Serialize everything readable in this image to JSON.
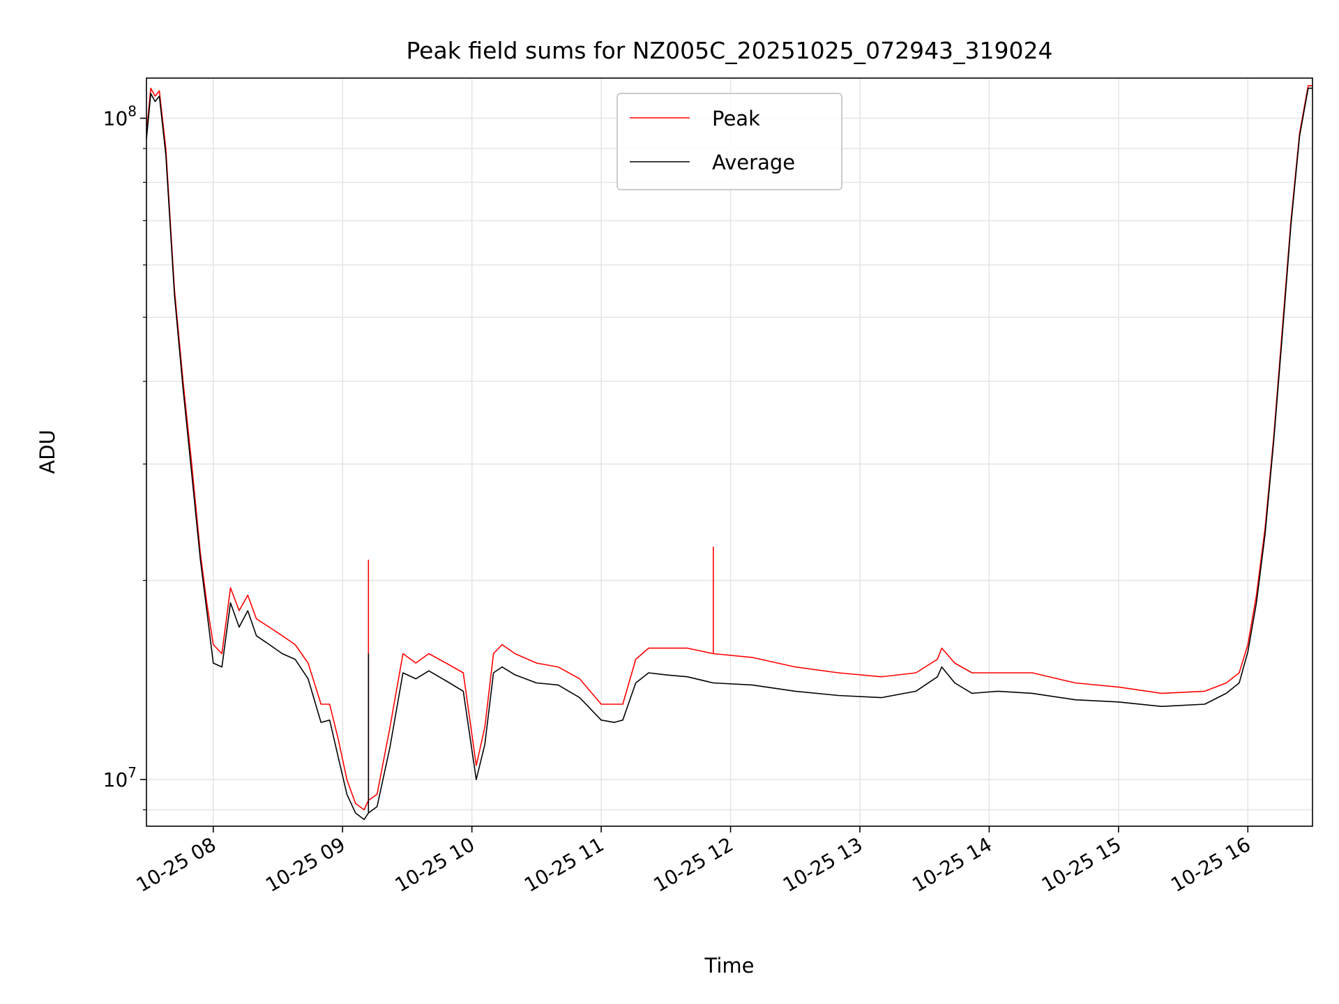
{
  "colors": {
    "peak": "#ff0000",
    "average": "#000000",
    "grid": "#e5e5e5",
    "axis": "#000000"
  },
  "chart_data": {
    "type": "line",
    "title": "Peak field sums for NZ005C_20251025_072943_319024",
    "xlabel": "Time",
    "ylabel": "ADU",
    "y_scale": "log",
    "xlim": [
      "10-25 07:29",
      "10-25 16:30"
    ],
    "ylim": [
      8500000,
      115000000
    ],
    "x_ticks": [
      "10-25 08",
      "10-25 09",
      "10-25 10",
      "10-25 11",
      "10-25 12",
      "10-25 13",
      "10-25 14",
      "10-25 15",
      "10-25 16"
    ],
    "x_tick_values": [
      "10-25 08:00",
      "10-25 09:00",
      "10-25 10:00",
      "10-25 11:00",
      "10-25 12:00",
      "10-25 13:00",
      "10-25 14:00",
      "10-25 15:00",
      "10-25 16:00"
    ],
    "y_ticks": [
      {
        "value": 10000000,
        "base": "10",
        "exp": "7"
      },
      {
        "value": 100000000,
        "base": "10",
        "exp": "8"
      }
    ],
    "grid": true,
    "legend_position": "top-center",
    "series": [
      {
        "name": "Peak",
        "color": "#ff0000",
        "x": [
          "10-25 07:29",
          "10-25 07:31",
          "10-25 07:33",
          "10-25 07:35",
          "10-25 07:38",
          "10-25 07:42",
          "10-25 07:46",
          "10-25 07:50",
          "10-25 07:54",
          "10-25 07:57",
          "10-25 08:00",
          "10-25 08:04",
          "10-25 08:08",
          "10-25 08:12",
          "10-25 08:16",
          "10-25 08:20",
          "10-25 08:26",
          "10-25 08:32",
          "10-25 08:38",
          "10-25 08:44",
          "10-25 08:50",
          "10-25 08:54",
          "10-25 08:58",
          "10-25 09:02",
          "10-25 09:06",
          "10-25 09:10",
          "10-25 09:12",
          "10-25 09:16",
          "10-25 09:22",
          "10-25 09:28",
          "10-25 09:34",
          "10-25 09:40",
          "10-25 09:48",
          "10-25 09:56",
          "10-25 10:02",
          "10-25 10:06",
          "10-25 10:10",
          "10-25 10:14",
          "10-25 10:20",
          "10-25 10:30",
          "10-25 10:40",
          "10-25 10:50",
          "10-25 11:00",
          "10-25 11:06",
          "10-25 11:10",
          "10-25 11:16",
          "10-25 11:22",
          "10-25 11:30",
          "10-25 11:40",
          "10-25 11:52",
          "10-25 12:10",
          "10-25 12:30",
          "10-25 12:50",
          "10-25 13:10",
          "10-25 13:26",
          "10-25 13:36",
          "10-25 13:38",
          "10-25 13:44",
          "10-25 13:52",
          "10-25 14:04",
          "10-25 14:20",
          "10-25 14:40",
          "10-25 15:00",
          "10-25 15:20",
          "10-25 15:40",
          "10-25 15:50",
          "10-25 15:56",
          "10-25 16:00",
          "10-25 16:04",
          "10-25 16:08",
          "10-25 16:12",
          "10-25 16:16",
          "10-25 16:20",
          "10-25 16:24",
          "10-25 16:28",
          "10-25 16:30"
        ],
        "values": [
          95000000,
          111000000,
          108000000,
          110000000,
          90000000,
          55000000,
          40000000,
          30000000,
          22000000,
          18500000,
          16000000,
          15500000,
          19500000,
          18000000,
          19000000,
          17500000,
          17000000,
          16500000,
          16000000,
          15000000,
          13000000,
          13000000,
          11500000,
          10000000,
          9200000,
          9000000,
          9300000,
          9500000,
          12000000,
          15500000,
          15000000,
          15500000,
          15000000,
          14500000,
          10500000,
          12000000,
          15500000,
          16000000,
          15500000,
          15000000,
          14800000,
          14200000,
          13000000,
          13000000,
          13000000,
          15200000,
          15800000,
          15800000,
          15800000,
          15500000,
          15300000,
          14800000,
          14500000,
          14300000,
          14500000,
          15200000,
          15800000,
          15000000,
          14500000,
          14500000,
          14500000,
          14000000,
          13800000,
          13500000,
          13600000,
          14000000,
          14500000,
          16000000,
          19000000,
          24000000,
          33000000,
          48000000,
          70000000,
          95000000,
          112000000,
          112000000
        ]
      },
      {
        "name": "Average",
        "color": "#000000",
        "x": [
          "10-25 07:29",
          "10-25 07:31",
          "10-25 07:33",
          "10-25 07:35",
          "10-25 07:38",
          "10-25 07:42",
          "10-25 07:46",
          "10-25 07:50",
          "10-25 07:54",
          "10-25 07:57",
          "10-25 08:00",
          "10-25 08:04",
          "10-25 08:08",
          "10-25 08:12",
          "10-25 08:16",
          "10-25 08:20",
          "10-25 08:26",
          "10-25 08:32",
          "10-25 08:38",
          "10-25 08:44",
          "10-25 08:50",
          "10-25 08:54",
          "10-25 08:58",
          "10-25 09:02",
          "10-25 09:06",
          "10-25 09:10",
          "10-25 09:12",
          "10-25 09:16",
          "10-25 09:22",
          "10-25 09:28",
          "10-25 09:34",
          "10-25 09:40",
          "10-25 09:48",
          "10-25 09:56",
          "10-25 10:02",
          "10-25 10:06",
          "10-25 10:10",
          "10-25 10:14",
          "10-25 10:20",
          "10-25 10:30",
          "10-25 10:40",
          "10-25 10:50",
          "10-25 11:00",
          "10-25 11:06",
          "10-25 11:10",
          "10-25 11:16",
          "10-25 11:22",
          "10-25 11:30",
          "10-25 11:40",
          "10-25 11:52",
          "10-25 12:10",
          "10-25 12:30",
          "10-25 12:50",
          "10-25 13:10",
          "10-25 13:26",
          "10-25 13:36",
          "10-25 13:38",
          "10-25 13:44",
          "10-25 13:52",
          "10-25 14:04",
          "10-25 14:20",
          "10-25 14:40",
          "10-25 15:00",
          "10-25 15:20",
          "10-25 15:40",
          "10-25 15:50",
          "10-25 15:56",
          "10-25 16:00",
          "10-25 16:04",
          "10-25 16:08",
          "10-25 16:12",
          "10-25 16:16",
          "10-25 16:20",
          "10-25 16:24",
          "10-25 16:28",
          "10-25 16:30"
        ],
        "values": [
          93000000,
          109000000,
          106000000,
          108000000,
          88000000,
          54000000,
          39000000,
          29000000,
          21500000,
          18000000,
          15000000,
          14800000,
          18500000,
          17000000,
          18000000,
          16500000,
          16000000,
          15500000,
          15200000,
          14200000,
          12200000,
          12300000,
          10800000,
          9500000,
          8900000,
          8700000,
          8900000,
          9100000,
          11200000,
          14500000,
          14200000,
          14600000,
          14100000,
          13600000,
          10000000,
          11300000,
          14500000,
          14800000,
          14400000,
          14000000,
          13900000,
          13300000,
          12300000,
          12200000,
          12300000,
          14000000,
          14500000,
          14400000,
          14300000,
          14000000,
          13900000,
          13600000,
          13400000,
          13300000,
          13600000,
          14300000,
          14800000,
          14000000,
          13500000,
          13600000,
          13500000,
          13200000,
          13100000,
          12900000,
          13000000,
          13500000,
          14000000,
          15600000,
          18500000,
          23500000,
          32500000,
          47000000,
          69000000,
          94000000,
          111000000,
          111000000
        ]
      }
    ],
    "annotations": [
      {
        "series": "Peak",
        "type": "spike",
        "x": "10-25 09:12",
        "value": 21500000
      },
      {
        "series": "Average",
        "type": "spike",
        "x": "10-25 09:12",
        "value": 15500000
      },
      {
        "series": "Peak",
        "type": "spike",
        "x": "10-25 11:52",
        "value": 22500000
      }
    ]
  }
}
